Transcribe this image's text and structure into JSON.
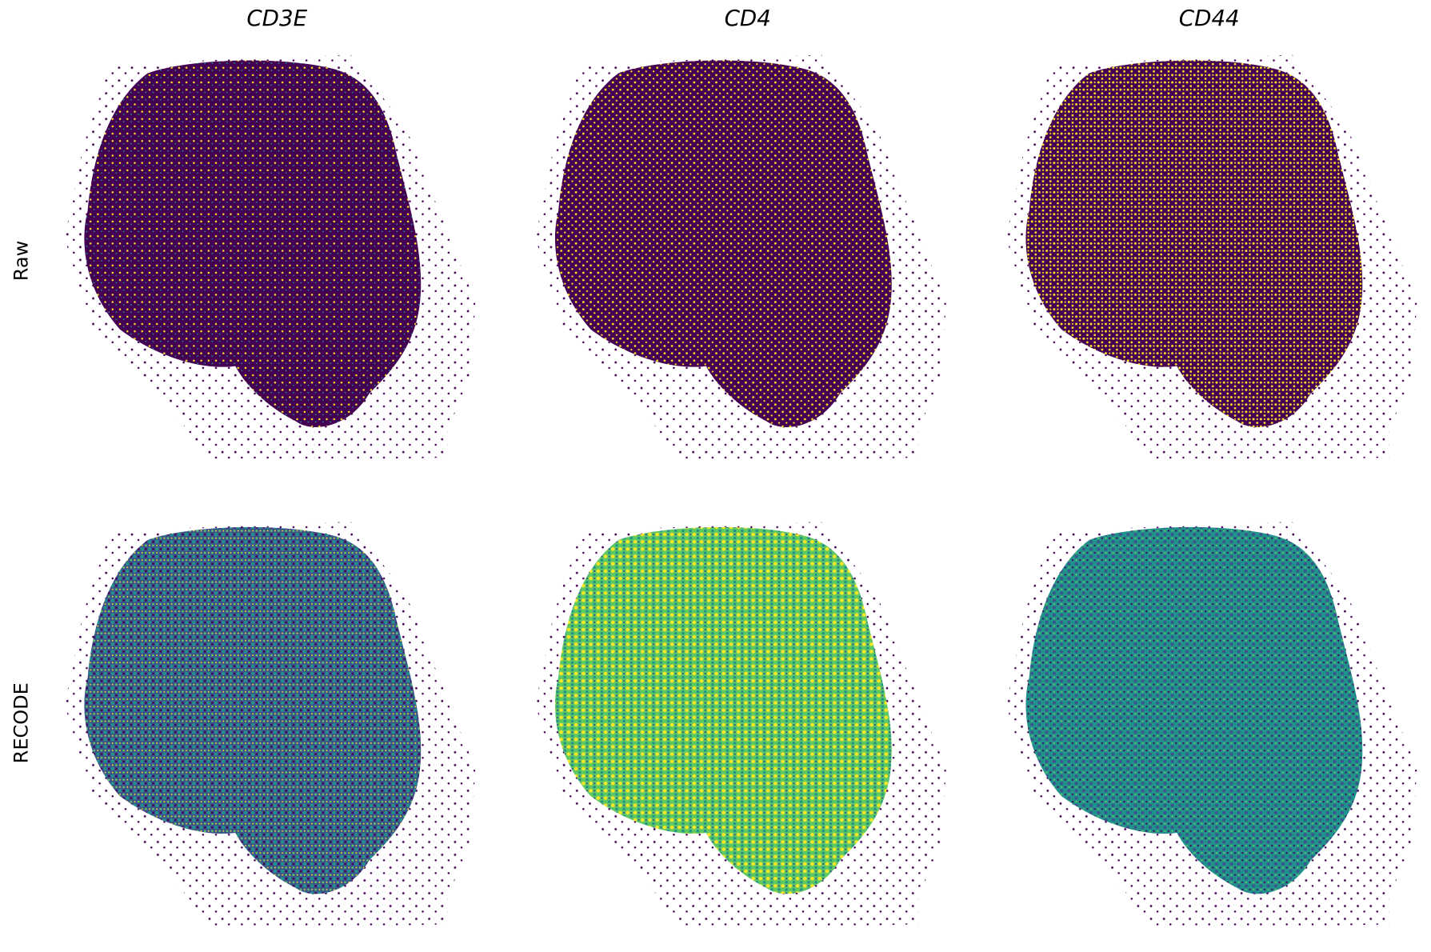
{
  "columns": [
    "CD3E",
    "CD4",
    "CD44"
  ],
  "rows": [
    "Raw",
    "RECODE"
  ]
}
